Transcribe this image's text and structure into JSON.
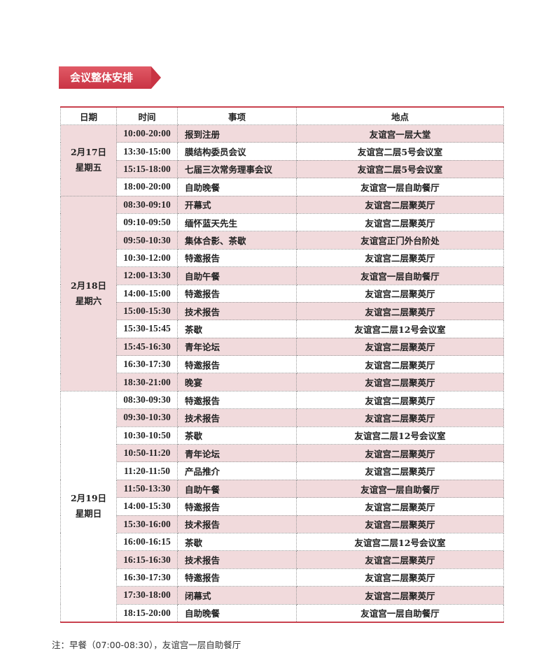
{
  "section_title": "会议整体安排",
  "headers": [
    "日期",
    "时间",
    "事项",
    "地点"
  ],
  "colors": {
    "accent": "#c9414e",
    "row_shade": "#f1dadc"
  },
  "days": [
    {
      "date": "2月17日",
      "weekday": "星期五",
      "shaded": true,
      "rows": [
        {
          "time": "10:00-20:00",
          "item": "报到注册",
          "place": "友谊宫一层大堂",
          "shaded": true
        },
        {
          "time": "13:30-15:00",
          "item": "膜结构委员会议",
          "place": "友谊宫二层5号会议室",
          "shaded": false
        },
        {
          "time": "15:15-18:00",
          "item": "七届三次常务理事会议",
          "place": "友谊宫二层5号会议室",
          "shaded": true
        },
        {
          "time": "18:00-20:00",
          "item": "自助晚餐",
          "place": "友谊宫一层自助餐厅",
          "shaded": false
        }
      ]
    },
    {
      "date": "2月18日",
      "weekday": "星期六",
      "shaded": true,
      "rows": [
        {
          "time": "08:30-09:10",
          "item": "开幕式",
          "place": "友谊宫二层聚英厅",
          "shaded": true
        },
        {
          "time": "09:10-09:50",
          "item": "缅怀蓝天先生",
          "place": "友谊宫二层聚英厅",
          "shaded": false
        },
        {
          "time": "09:50-10:30",
          "item": "集体合影、茶歇",
          "place": "友谊宫正门外台阶处",
          "shaded": true
        },
        {
          "time": "10:30-12:00",
          "item": "特邀报告",
          "place": "友谊宫二层聚英厅",
          "shaded": false
        },
        {
          "time": "12:00-13:30",
          "item": "自助午餐",
          "place": "友谊宫一层自助餐厅",
          "shaded": true
        },
        {
          "time": "14:00-15:00",
          "item": "特邀报告",
          "place": "友谊宫二层聚英厅",
          "shaded": false
        },
        {
          "time": "15:00-15:30",
          "item": "技术报告",
          "place": "友谊宫二层聚英厅",
          "shaded": true
        },
        {
          "time": "15:30-15:45",
          "item": "茶歇",
          "place": "友谊宫二层12号会议室",
          "shaded": false
        },
        {
          "time": "15:45-16:30",
          "item": "青年论坛",
          "place": "友谊宫二层聚英厅",
          "shaded": true
        },
        {
          "time": "16:30-17:30",
          "item": "特邀报告",
          "place": "友谊宫二层聚英厅",
          "shaded": false
        },
        {
          "time": "18:30-21:00",
          "item": "晚宴",
          "place": "友谊宫二层聚英厅",
          "shaded": true
        }
      ]
    },
    {
      "date": "2月19日",
      "weekday": "星期日",
      "shaded": false,
      "rows": [
        {
          "time": "08:30-09:30",
          "item": "特邀报告",
          "place": "友谊宫二层聚英厅",
          "shaded": false
        },
        {
          "time": "09:30-10:30",
          "item": "技术报告",
          "place": "友谊宫二层聚英厅",
          "shaded": true
        },
        {
          "time": "10:30-10:50",
          "item": "茶歇",
          "place": "友谊宫二层12号会议室",
          "shaded": false
        },
        {
          "time": "10:50-11:20",
          "item": "青年论坛",
          "place": "友谊宫二层聚英厅",
          "shaded": true
        },
        {
          "time": "11:20-11:50",
          "item": "产品推介",
          "place": "友谊宫二层聚英厅",
          "shaded": false
        },
        {
          "time": "11:50-13:30",
          "item": "自助午餐",
          "place": "友谊宫一层自助餐厅",
          "shaded": true
        },
        {
          "time": "14:00-15:30",
          "item": "特邀报告",
          "place": "友谊宫二层聚英厅",
          "shaded": false
        },
        {
          "time": "15:30-16:00",
          "item": "技术报告",
          "place": "友谊宫二层聚英厅",
          "shaded": true
        },
        {
          "time": "16:00-16:15",
          "item": "茶歇",
          "place": "友谊宫二层12号会议室",
          "shaded": false
        },
        {
          "time": "16:15-16:30",
          "item": "技术报告",
          "place": "友谊宫二层聚英厅",
          "shaded": true
        },
        {
          "time": "16:30-17:30",
          "item": "特邀报告",
          "place": "友谊宫二层聚英厅",
          "shaded": false
        },
        {
          "time": "17:30-18:00",
          "item": "闭幕式",
          "place": "友谊宫二层聚英厅",
          "shaded": true
        },
        {
          "time": "18:15-20:00",
          "item": "自助晚餐",
          "place": "友谊宫一层自助餐厅",
          "shaded": false
        }
      ]
    }
  ],
  "note": "注：早餐（07:00-08:30），友谊宫一层自助餐厅"
}
